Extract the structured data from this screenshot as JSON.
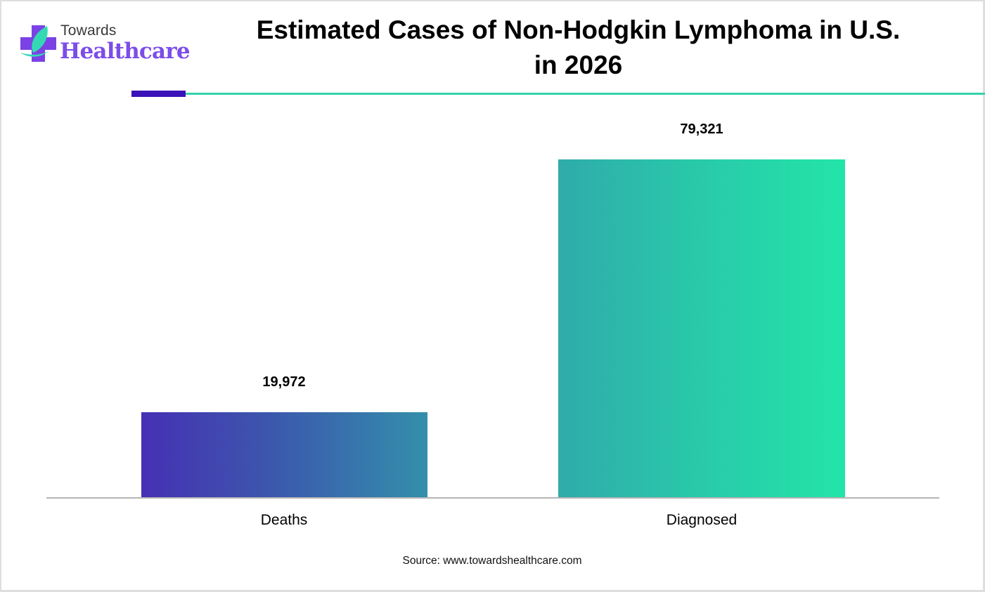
{
  "brand": {
    "line1": "Towards",
    "line2": "Healthcare",
    "icon": "medical-cross-leaf-icon",
    "colors": {
      "purple": "#7c4de8",
      "teal": "#34d3a9",
      "text": "#3a3a3a"
    }
  },
  "header": {
    "title_line1": "Estimated Cases of Non-Hodgkin Lymphoma in U.S.",
    "title_line2": "in 2026",
    "accent_colors": {
      "dark": "#3a12b8",
      "teal": "#34d3a9"
    }
  },
  "chart_data": {
    "type": "bar",
    "title": "Estimated Cases of Non-Hodgkin Lymphoma in U.S. in 2026",
    "categories": [
      "Deaths",
      "Diagnosed"
    ],
    "values": [
      19972,
      79321
    ],
    "value_labels": [
      "19,972",
      "79,321"
    ],
    "xlabel": "",
    "ylabel": "",
    "ylim": [
      0,
      79321
    ],
    "grid": false,
    "legend": "none",
    "bar_gradients": [
      {
        "from": "#4630b4",
        "to": "#338fab"
      },
      {
        "from": "#2fabab",
        "to": "#23e5a8"
      }
    ]
  },
  "footer": {
    "source": "Source: www.towardshealthcare.com"
  }
}
